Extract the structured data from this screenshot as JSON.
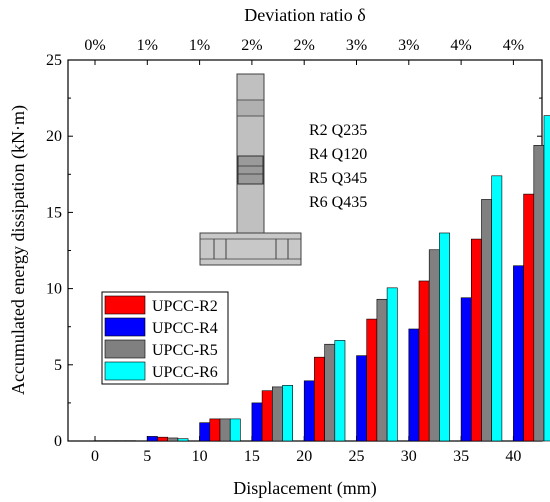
{
  "chart_data": {
    "type": "bar",
    "categories": [
      "0",
      "5",
      "10",
      "15",
      "20",
      "25",
      "30",
      "35",
      "40"
    ],
    "xlabel": "Displacement (mm)",
    "ylabel": "Accumulated energy dissipation (kN·m)",
    "ylim": [
      0,
      25
    ],
    "yticks": [
      0,
      5,
      10,
      15,
      20,
      25
    ],
    "top_axis": {
      "label": "Deviation ratio δ",
      "ticks": [
        "0%",
        "1%",
        "1%",
        "2%",
        "2%",
        "3%",
        "3%",
        "4%",
        "4%"
      ]
    },
    "series": [
      {
        "name": "UPCC-R2",
        "color": "#ff0000",
        "values": [
          0.02,
          0.25,
          1.45,
          3.3,
          5.5,
          8.0,
          10.5,
          13.25,
          16.2
        ]
      },
      {
        "name": "UPCC-R4",
        "color": "#0000ff",
        "values": [
          0.02,
          0.3,
          1.2,
          2.5,
          3.95,
          5.6,
          7.35,
          9.4,
          11.5
        ]
      },
      {
        "name": "UPCC-R5",
        "color": "#808080",
        "values": [
          0.02,
          0.2,
          1.45,
          3.55,
          6.35,
          9.3,
          12.55,
          15.85,
          19.4
        ]
      },
      {
        "name": "UPCC-R6",
        "color": "#00ffff",
        "values": [
          0.02,
          0.15,
          1.45,
          3.65,
          6.6,
          10.05,
          13.65,
          17.4,
          21.35
        ]
      }
    ],
    "grid": false,
    "legend_position": "bottom-left",
    "annotation_lines": [
      "R2 Q235",
      "R4 Q120",
      "R5 Q345",
      "R6 Q435"
    ]
  }
}
